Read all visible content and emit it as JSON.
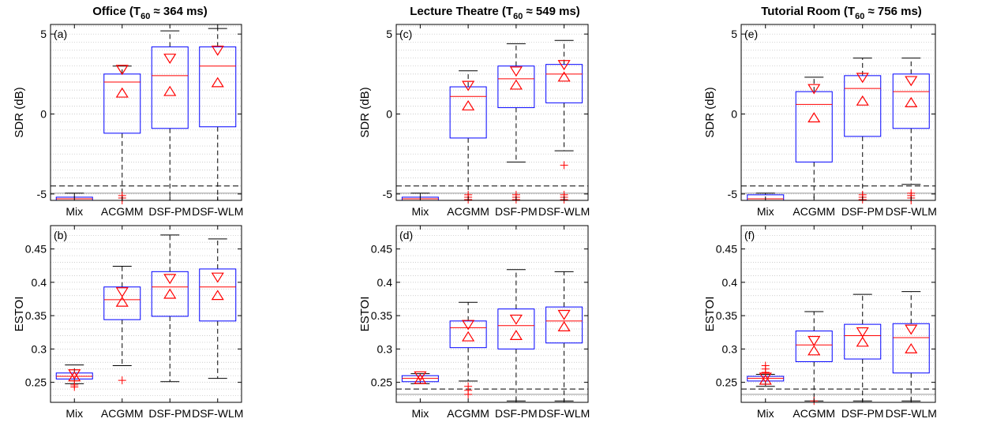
{
  "colors": {
    "box": "#0000ff",
    "median": "#ff0000",
    "marker": "#ff0000",
    "outlier": "#ff0000",
    "whisker": "#000000",
    "ref": "#000000",
    "grid": "#bdbdbd"
  },
  "columns": [
    {
      "title": "Office (T",
      "sub": "60",
      "rest": " ≈ 364 ms)"
    },
    {
      "title": "Lecture Theatre (T",
      "sub": "60",
      "rest": " ≈ 549 ms)"
    },
    {
      "title": "Tutorial Room (T",
      "sub": "60",
      "rest": " ≈ 756 ms)"
    }
  ],
  "chart_data": [
    {
      "type": "box",
      "panel": "(a)",
      "ylabel": "SDR (dB)",
      "ylim": [
        -5.4,
        5.6
      ],
      "yticks": [
        -5,
        0,
        5
      ],
      "categories": [
        "Mix",
        "ACGMM",
        "DSF-PM",
        "DSF-WLM"
      ],
      "reference": -4.5,
      "reference2": -4.95,
      "boxes": [
        {
          "wlo": -5.5,
          "q1": -5.5,
          "med": -5.3,
          "q3": -5.2,
          "whi": -4.95,
          "down": null,
          "up": null,
          "out": []
        },
        {
          "wlo": -5.5,
          "q1": -1.2,
          "med": 2.0,
          "q3": 2.5,
          "whi": 3.0,
          "down": 2.8,
          "up": 1.3,
          "out": [
            -5.1,
            -5.25,
            -5.4
          ]
        },
        {
          "wlo": -5.5,
          "q1": -0.9,
          "med": 2.4,
          "q3": 4.2,
          "whi": 5.2,
          "down": 3.5,
          "up": 1.4,
          "out": []
        },
        {
          "wlo": -5.5,
          "q1": -0.8,
          "med": 3.0,
          "q3": 4.2,
          "whi": 5.35,
          "down": 4.0,
          "up": 1.95,
          "out": []
        }
      ]
    },
    {
      "type": "box",
      "panel": "(b)",
      "ylabel": "ESTOI",
      "ylim": [
        0.22,
        0.485
      ],
      "yticks": [
        0.25,
        0.3,
        0.35,
        0.4,
        0.45
      ],
      "categories": [
        "Mix",
        "ACGMM",
        "DSF-PM",
        "DSF-WLM"
      ],
      "reference": null,
      "reference2": null,
      "boxes": [
        {
          "wlo": 0.248,
          "q1": 0.255,
          "med": 0.259,
          "q3": 0.264,
          "whi": 0.276,
          "down": 0.263,
          "up": 0.258,
          "out": [
            0.246,
            0.243
          ]
        },
        {
          "wlo": 0.275,
          "q1": 0.344,
          "med": 0.374,
          "q3": 0.393,
          "whi": 0.424,
          "down": 0.386,
          "up": 0.37,
          "out": [
            0.253
          ]
        },
        {
          "wlo": 0.251,
          "q1": 0.349,
          "med": 0.393,
          "q3": 0.416,
          "whi": 0.471,
          "down": 0.406,
          "up": 0.382,
          "out": []
        },
        {
          "wlo": 0.256,
          "q1": 0.342,
          "med": 0.393,
          "q3": 0.42,
          "whi": 0.465,
          "down": 0.408,
          "up": 0.38,
          "out": []
        }
      ]
    },
    {
      "type": "box",
      "panel": "(c)",
      "ylabel": "SDR (dB)",
      "ylim": [
        -5.4,
        5.6
      ],
      "yticks": [
        -5,
        0,
        5
      ],
      "categories": [
        "Mix",
        "ACGMM",
        "DSF-PM",
        "DSF-WLM"
      ],
      "reference": -4.5,
      "reference2": -4.95,
      "boxes": [
        {
          "wlo": -5.5,
          "q1": -5.5,
          "med": -5.3,
          "q3": -5.2,
          "whi": -4.95,
          "down": null,
          "up": null,
          "out": []
        },
        {
          "wlo": -5.5,
          "q1": -1.5,
          "med": 1.1,
          "q3": 1.7,
          "whi": 2.7,
          "down": 1.8,
          "up": 0.5,
          "out": [
            -5.05,
            -5.2,
            -5.35
          ]
        },
        {
          "wlo": -3.0,
          "q1": 0.4,
          "med": 2.2,
          "q3": 3.0,
          "whi": 4.4,
          "down": 2.7,
          "up": 1.8,
          "out": [
            -5.05,
            -5.2,
            -5.35
          ]
        },
        {
          "wlo": -2.3,
          "q1": 0.7,
          "med": 2.5,
          "q3": 3.1,
          "whi": 4.6,
          "down": 3.1,
          "up": 2.3,
          "out": [
            -3.2,
            -5.05,
            -5.2,
            -5.35
          ]
        }
      ]
    },
    {
      "type": "box",
      "panel": "(d)",
      "ylabel": "ESTOI",
      "ylim": [
        0.22,
        0.485
      ],
      "yticks": [
        0.25,
        0.3,
        0.35,
        0.4,
        0.45
      ],
      "categories": [
        "Mix",
        "ACGMM",
        "DSF-PM",
        "DSF-WLM"
      ],
      "reference": 0.24,
      "reference2": 0.232,
      "boxes": [
        {
          "wlo": 0.248,
          "q1": 0.251,
          "med": 0.256,
          "q3": 0.26,
          "whi": 0.263,
          "down": 0.26,
          "up": 0.254,
          "out": []
        },
        {
          "wlo": 0.252,
          "q1": 0.302,
          "med": 0.332,
          "q3": 0.342,
          "whi": 0.37,
          "down": 0.337,
          "up": 0.318,
          "out": [
            0.244,
            0.238,
            0.232
          ]
        },
        {
          "wlo": 0.222,
          "q1": 0.3,
          "med": 0.335,
          "q3": 0.36,
          "whi": 0.419,
          "down": 0.345,
          "up": 0.32,
          "out": []
        },
        {
          "wlo": 0.222,
          "q1": 0.309,
          "med": 0.342,
          "q3": 0.363,
          "whi": 0.416,
          "down": 0.352,
          "up": 0.333,
          "out": []
        }
      ]
    },
    {
      "type": "box",
      "panel": "(e)",
      "ylabel": "SDR (dB)",
      "ylim": [
        -5.4,
        5.6
      ],
      "yticks": [
        -5,
        0,
        5
      ],
      "categories": [
        "Mix",
        "ACGMM",
        "DSF-PM",
        "DSF-WLM"
      ],
      "reference": -4.5,
      "reference2": -4.95,
      "boxes": [
        {
          "wlo": -5.5,
          "q1": -5.5,
          "med": -5.3,
          "q3": -5.05,
          "whi": -4.95,
          "down": null,
          "up": null,
          "out": []
        },
        {
          "wlo": -5.5,
          "q1": -3.0,
          "med": 0.6,
          "q3": 1.4,
          "whi": 2.3,
          "down": 1.6,
          "up": -0.25,
          "out": []
        },
        {
          "wlo": -5.5,
          "q1": -1.4,
          "med": 1.6,
          "q3": 2.4,
          "whi": 3.5,
          "down": 2.3,
          "up": 0.8,
          "out": [
            -5.05,
            -5.2,
            -5.35
          ]
        },
        {
          "wlo": -4.4,
          "q1": -0.9,
          "med": 1.4,
          "q3": 2.5,
          "whi": 3.5,
          "down": 2.1,
          "up": 0.7,
          "out": [
            -4.95,
            -5.1,
            -5.25,
            -5.4
          ]
        }
      ]
    },
    {
      "type": "box",
      "panel": "(f)",
      "ylabel": "ESTOI",
      "ylim": [
        0.22,
        0.485
      ],
      "yticks": [
        0.25,
        0.3,
        0.35,
        0.4,
        0.45
      ],
      "categories": [
        "Mix",
        "ACGMM",
        "DSF-PM",
        "DSF-WLM"
      ],
      "reference": 0.24,
      "reference2": 0.232,
      "boxes": [
        {
          "wlo": 0.244,
          "q1": 0.252,
          "med": 0.256,
          "q3": 0.259,
          "whi": 0.262,
          "down": 0.258,
          "up": 0.253,
          "out": [
            0.275,
            0.27,
            0.265
          ]
        },
        {
          "wlo": 0.222,
          "q1": 0.281,
          "med": 0.306,
          "q3": 0.327,
          "whi": 0.356,
          "down": 0.313,
          "up": 0.297,
          "out": [
            0.222
          ]
        },
        {
          "wlo": 0.222,
          "q1": 0.285,
          "med": 0.32,
          "q3": 0.337,
          "whi": 0.382,
          "down": 0.326,
          "up": 0.31,
          "out": []
        },
        {
          "wlo": 0.222,
          "q1": 0.264,
          "med": 0.317,
          "q3": 0.338,
          "whi": 0.386,
          "down": 0.33,
          "up": 0.3,
          "out": []
        }
      ]
    }
  ]
}
